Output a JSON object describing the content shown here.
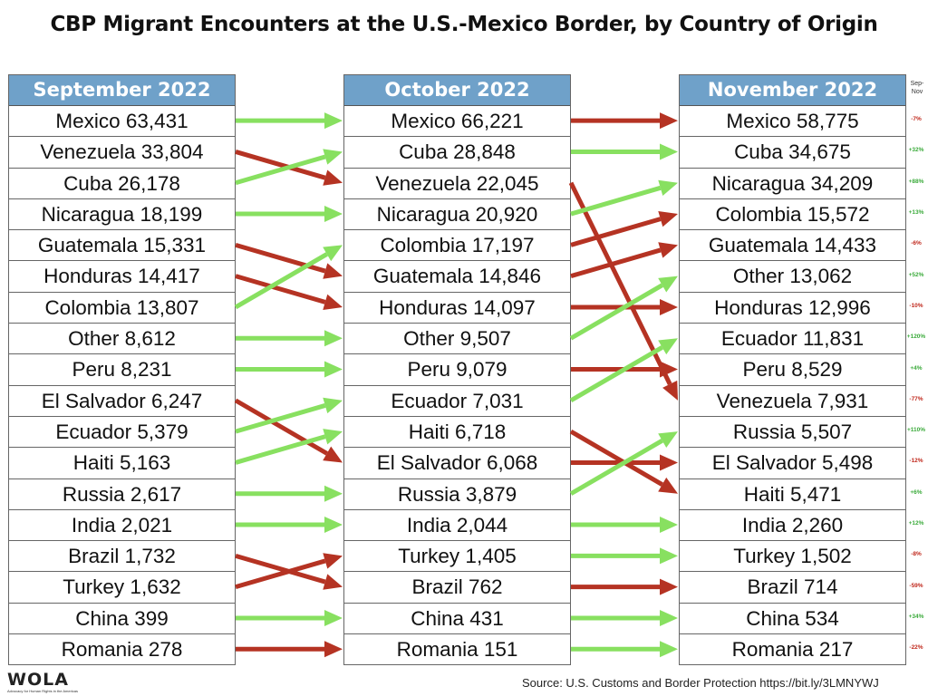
{
  "title": "CBP Migrant Encounters at the U.S.-Mexico Border, by Country of Origin",
  "pct_header": "Sep-Nov",
  "source": "Source: U.S. Customs and Border Protection https://bit.ly/3LMNYWJ",
  "logo": {
    "word": "WOLA",
    "tagline": "Advocacy for Human Rights in the Americas"
  },
  "colors": {
    "header": "#6fa1c9",
    "up": "#88e060",
    "down": "#b53323",
    "pct_up": "#3aaa3a",
    "pct_down": "#c0281c"
  },
  "chart_data": {
    "type": "table",
    "columns": [
      {
        "month": "September 2022",
        "rows": [
          {
            "country": "Mexico",
            "value": 63431,
            "label": "Mexico 63,431"
          },
          {
            "country": "Venezuela",
            "value": 33804,
            "label": "Venezuela 33,804"
          },
          {
            "country": "Cuba",
            "value": 26178,
            "label": "Cuba 26,178"
          },
          {
            "country": "Nicaragua",
            "value": 18199,
            "label": "Nicaragua 18,199"
          },
          {
            "country": "Guatemala",
            "value": 15331,
            "label": "Guatemala 15,331"
          },
          {
            "country": "Honduras",
            "value": 14417,
            "label": "Honduras 14,417"
          },
          {
            "country": "Colombia",
            "value": 13807,
            "label": "Colombia 13,807"
          },
          {
            "country": "Other",
            "value": 8612,
            "label": "Other 8,612"
          },
          {
            "country": "Peru",
            "value": 8231,
            "label": "Peru 8,231"
          },
          {
            "country": "El Salvador",
            "value": 6247,
            "label": "El Salvador 6,247"
          },
          {
            "country": "Ecuador",
            "value": 5379,
            "label": "Ecuador 5,379"
          },
          {
            "country": "Haiti",
            "value": 5163,
            "label": "Haiti 5,163"
          },
          {
            "country": "Russia",
            "value": 2617,
            "label": "Russia 2,617"
          },
          {
            "country": "India",
            "value": 2021,
            "label": "India 2,021"
          },
          {
            "country": "Brazil",
            "value": 1732,
            "label": "Brazil 1,732"
          },
          {
            "country": "Turkey",
            "value": 1632,
            "label": "Turkey 1,632"
          },
          {
            "country": "China",
            "value": 399,
            "label": "China 399"
          },
          {
            "country": "Romania",
            "value": 278,
            "label": "Romania 278"
          }
        ]
      },
      {
        "month": "October 2022",
        "rows": [
          {
            "country": "Mexico",
            "value": 66221,
            "label": "Mexico 66,221"
          },
          {
            "country": "Cuba",
            "value": 28848,
            "label": "Cuba 28,848"
          },
          {
            "country": "Venezuela",
            "value": 22045,
            "label": "Venezuela 22,045"
          },
          {
            "country": "Nicaragua",
            "value": 20920,
            "label": "Nicaragua 20,920"
          },
          {
            "country": "Colombia",
            "value": 17197,
            "label": "Colombia 17,197"
          },
          {
            "country": "Guatemala",
            "value": 14846,
            "label": "Guatemala 14,846"
          },
          {
            "country": "Honduras",
            "value": 14097,
            "label": "Honduras 14,097"
          },
          {
            "country": "Other",
            "value": 9507,
            "label": "Other 9,507"
          },
          {
            "country": "Peru",
            "value": 9079,
            "label": "Peru 9,079"
          },
          {
            "country": "Ecuador",
            "value": 7031,
            "label": "Ecuador 7,031"
          },
          {
            "country": "Haiti",
            "value": 6718,
            "label": "Haiti 6,718"
          },
          {
            "country": "El Salvador",
            "value": 6068,
            "label": "El Salvador 6,068"
          },
          {
            "country": "Russia",
            "value": 3879,
            "label": "Russia 3,879"
          },
          {
            "country": "India",
            "value": 2044,
            "label": "India 2,044"
          },
          {
            "country": "Turkey",
            "value": 1405,
            "label": "Turkey 1,405"
          },
          {
            "country": "Brazil",
            "value": 762,
            "label": "Brazil 762"
          },
          {
            "country": "China",
            "value": 431,
            "label": "China 431"
          },
          {
            "country": "Romania",
            "value": 151,
            "label": "Romania 151"
          }
        ]
      },
      {
        "month": "November 2022",
        "rows": [
          {
            "country": "Mexico",
            "value": 58775,
            "label": "Mexico 58,775",
            "change": "-7%"
          },
          {
            "country": "Cuba",
            "value": 34675,
            "label": "Cuba 34,675",
            "change": "+32%"
          },
          {
            "country": "Nicaragua",
            "value": 34209,
            "label": "Nicaragua 34,209",
            "change": "+88%"
          },
          {
            "country": "Colombia",
            "value": 15572,
            "label": "Colombia 15,572",
            "change": "+13%"
          },
          {
            "country": "Guatemala",
            "value": 14433,
            "label": "Guatemala 14,433",
            "change": "-6%"
          },
          {
            "country": "Other",
            "value": 13062,
            "label": "Other 13,062",
            "change": "+52%"
          },
          {
            "country": "Honduras",
            "value": 12996,
            "label": "Honduras 12,996",
            "change": "-10%"
          },
          {
            "country": "Ecuador",
            "value": 11831,
            "label": "Ecuador 11,831",
            "change": "+120%"
          },
          {
            "country": "Peru",
            "value": 8529,
            "label": "Peru 8,529",
            "change": "+4%"
          },
          {
            "country": "Venezuela",
            "value": 7931,
            "label": "Venezuela 7,931",
            "change": "-77%"
          },
          {
            "country": "Russia",
            "value": 5507,
            "label": "Russia 5,507",
            "change": "+110%"
          },
          {
            "country": "El Salvador",
            "value": 5498,
            "label": "El Salvador 5,498",
            "change": "-12%"
          },
          {
            "country": "Haiti",
            "value": 5471,
            "label": "Haiti 5,471",
            "change": "+6%"
          },
          {
            "country": "India",
            "value": 2260,
            "label": "India 2,260",
            "change": "+12%"
          },
          {
            "country": "Turkey",
            "value": 1502,
            "label": "Turkey 1,502",
            "change": "-8%"
          },
          {
            "country": "Brazil",
            "value": 714,
            "label": "Brazil 714",
            "change": "-59%"
          },
          {
            "country": "China",
            "value": 534,
            "label": "China 534",
            "change": "+34%"
          },
          {
            "country": "Romania",
            "value": 217,
            "label": "Romania 217",
            "change": "-22%"
          }
        ]
      }
    ]
  }
}
